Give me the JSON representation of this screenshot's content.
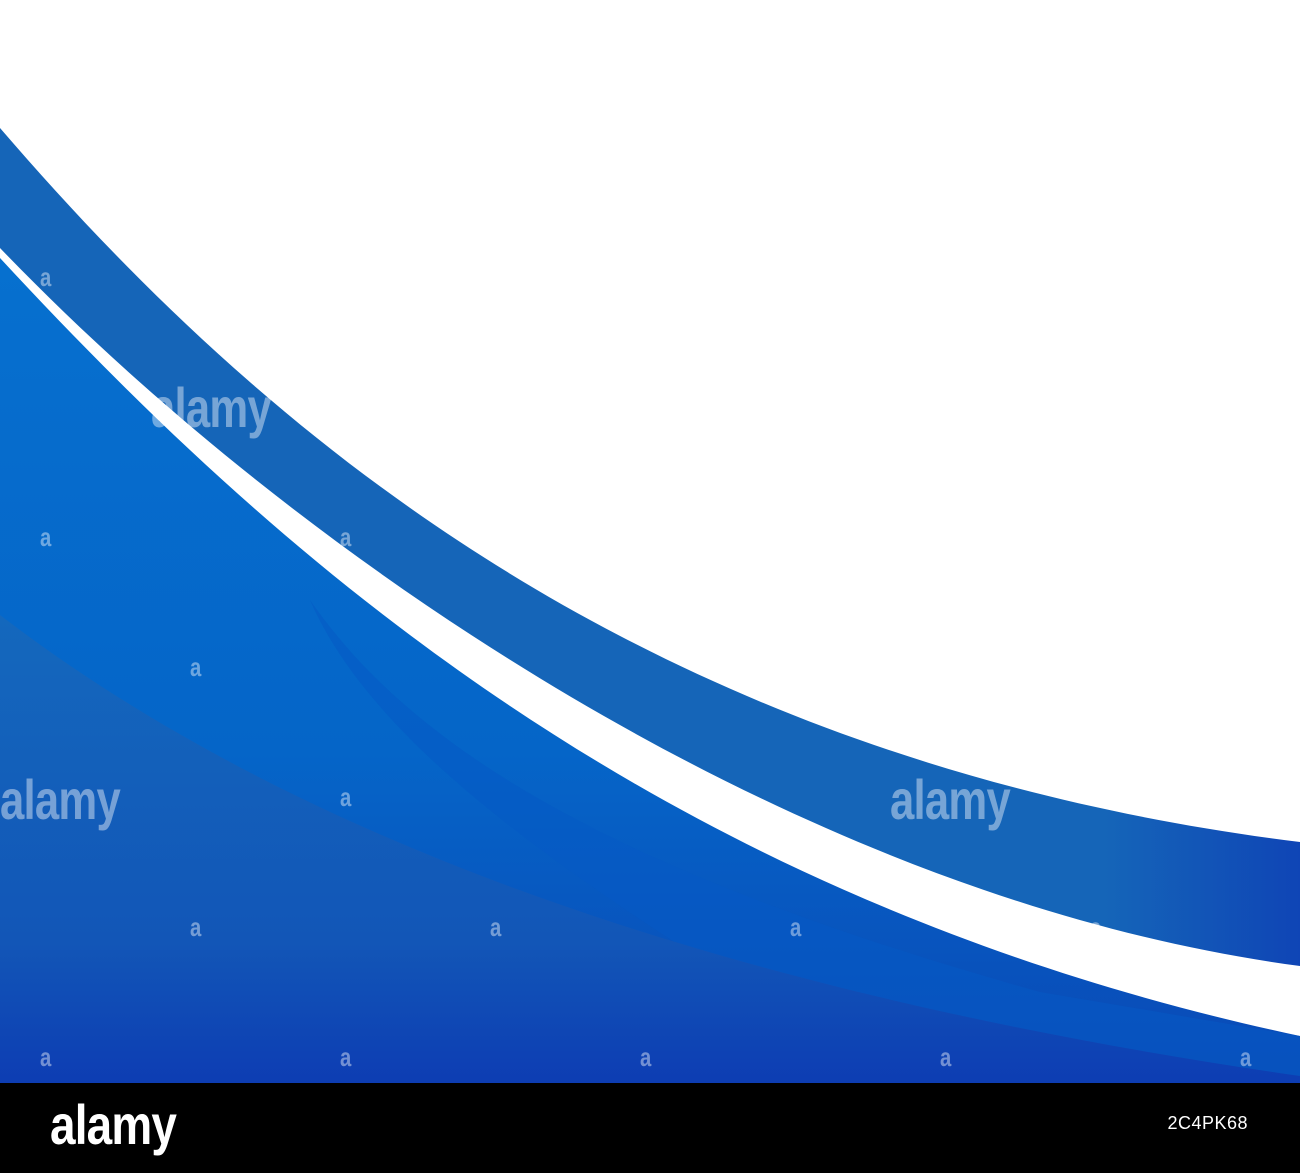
{
  "image": {
    "colors": {
      "background": "#ffffff",
      "ribbon_blue": "#1565b8",
      "bright_blue": "#0670cf",
      "deep_blue": "#0a3fb5",
      "footer": "#000000"
    }
  },
  "watermark": {
    "word": "alamy",
    "letter": "a"
  },
  "footer": {
    "logo": "alamy",
    "image_id": "2C4PK68"
  }
}
